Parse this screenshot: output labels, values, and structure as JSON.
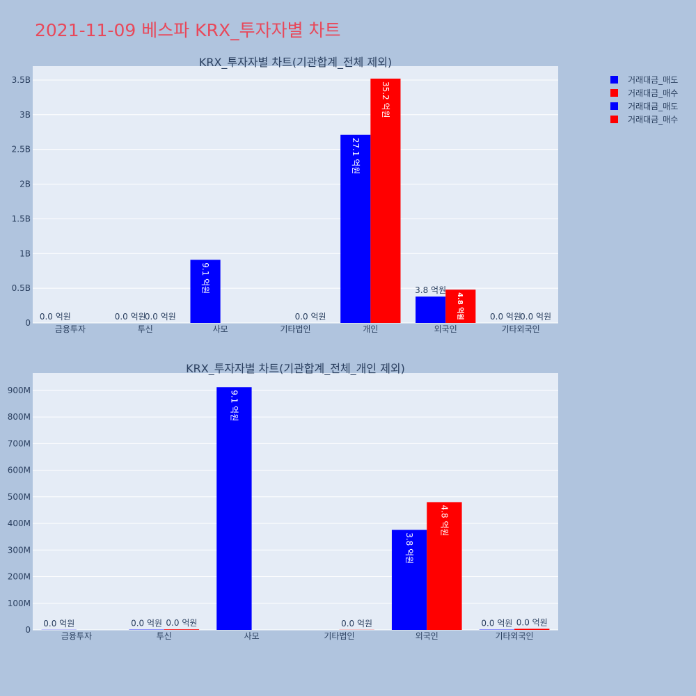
{
  "page_title": "2021-11-09 베스파 KRX_투자자별 차트",
  "colors": {
    "sell": "#0000ff",
    "buy": "#ff0000"
  },
  "legend": [
    "거래대금_매도",
    "거래대금_매수",
    "거래대금_매도",
    "거래대금_매수"
  ],
  "chart_data": [
    {
      "type": "bar",
      "title": "KRX_투자자별 차트(기관합계_전체 제외)",
      "categories": [
        "금융투자",
        "투신",
        "사모",
        "기타법인",
        "개인",
        "외국인",
        "기타외국인"
      ],
      "ylim": [
        0,
        3700000000
      ],
      "yticks": [
        0,
        500000000,
        1000000000,
        1500000000,
        2000000000,
        2500000000,
        3000000000,
        3500000000
      ],
      "ytick_labels": [
        "0",
        "0.5B",
        "1B",
        "1.5B",
        "2B",
        "2.5B",
        "3B",
        "3.5B"
      ],
      "series": [
        {
          "name": "거래대금_매도",
          "color": "#0000ff",
          "values": [
            0,
            0,
            910000000,
            0,
            2710000000,
            380000000,
            0
          ],
          "labels": [
            "0.0 억원",
            "0.0 억원",
            "9.1 억원",
            "",
            "27.1 억원",
            "3.8 억원",
            "0.0 억원"
          ]
        },
        {
          "name": "거래대금_매수",
          "color": "#ff0000",
          "values": [
            0,
            0,
            0,
            0,
            3520000000,
            480000000,
            0
          ],
          "labels": [
            "",
            "0.0 억원",
            "",
            "0.0 억원",
            "35.2 억원",
            "4.8 억원",
            "0.0 억원"
          ]
        }
      ]
    },
    {
      "type": "bar",
      "title": "KRX_투자자별 차트(기관합계_전체_개인 제외)",
      "categories": [
        "금융투자",
        "투신",
        "사모",
        "기타법인",
        "외국인",
        "기타외국인"
      ],
      "ylim": [
        0,
        965000000
      ],
      "yticks": [
        0,
        100000000,
        200000000,
        300000000,
        400000000,
        500000000,
        600000000,
        700000000,
        800000000,
        900000000
      ],
      "ytick_labels": [
        "0",
        "100M",
        "200M",
        "300M",
        "400M",
        "500M",
        "600M",
        "700M",
        "800M",
        "900M"
      ],
      "series": [
        {
          "name": "거래대금_매도",
          "color": "#0000ff",
          "values": [
            500000,
            1000000,
            912000000,
            0,
            376000000,
            1000000
          ],
          "labels": [
            "0.0 억원",
            "0.0 억원",
            "9.1 억원",
            "",
            "3.8 억원",
            "0.0 억원"
          ]
        },
        {
          "name": "거래대금_매수",
          "color": "#ff0000",
          "values": [
            0,
            2000000,
            0,
            500000,
            480000000,
            4000000
          ],
          "labels": [
            "",
            "0.0 억원",
            "",
            "0.0 억원",
            "4.8 억원",
            "0.0 억원"
          ]
        }
      ]
    }
  ]
}
